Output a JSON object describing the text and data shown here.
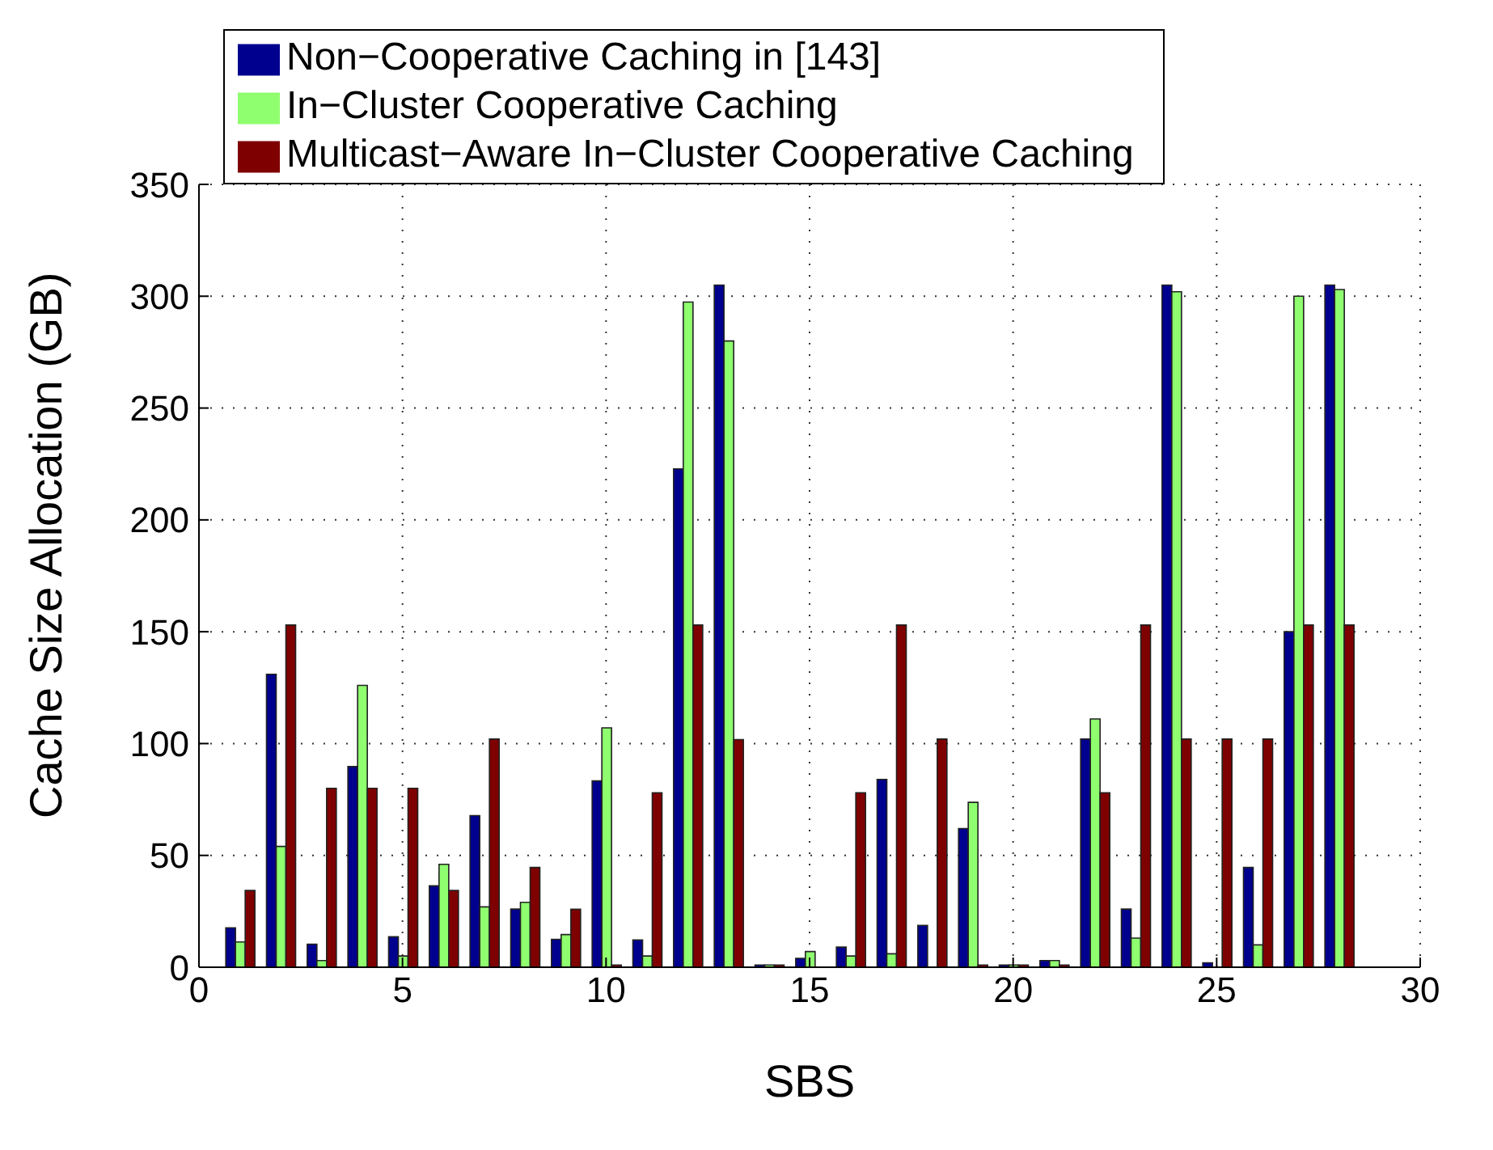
{
  "chart_data": {
    "type": "bar",
    "xlabel": "SBS",
    "ylabel": "Cache Size Allocation (GB)",
    "x": [
      1,
      2,
      3,
      4,
      5,
      6,
      7,
      8,
      9,
      10,
      11,
      12,
      13,
      14,
      15,
      16,
      17,
      18,
      19,
      20,
      21,
      22,
      23,
      24,
      25,
      26,
      27,
      28
    ],
    "series": [
      {
        "name": "Non−Cooperative Caching  in [143]",
        "color": "#00008f",
        "values": [
          17.6,
          131,
          10.3,
          89.7,
          13.6,
          36.4,
          67.8,
          26,
          12.5,
          83.3,
          12.2,
          222.8,
          305,
          1,
          4,
          9,
          84,
          18.7,
          62,
          1,
          3,
          102,
          26,
          305,
          2,
          44.6,
          150,
          305
        ]
      },
      {
        "name": "In−Cluster Cooperative Caching",
        "color": "#8fff6f",
        "values": [
          11.3,
          54,
          3,
          126,
          5,
          46,
          27,
          29,
          14.6,
          107,
          5,
          297.4,
          280,
          1,
          7,
          5,
          6,
          null,
          73.7,
          1,
          3,
          111,
          13,
          302,
          null,
          10,
          300,
          303
        ]
      },
      {
        "name": "Multicast−Aware In−Cluster Cooperative Caching",
        "color": "#7f0000",
        "values": [
          34.3,
          153,
          80,
          80,
          80,
          34.3,
          102,
          44.6,
          25.9,
          1,
          78,
          153,
          101.8,
          1,
          null,
          78,
          153,
          102,
          1,
          1,
          1,
          78,
          153,
          102,
          102,
          102,
          153,
          153
        ]
      }
    ],
    "xlim": [
      0,
      30
    ],
    "xticks": [
      0,
      5,
      10,
      15,
      20,
      25,
      30
    ],
    "ylim": [
      0,
      350
    ],
    "yticks": [
      0,
      50,
      100,
      150,
      200,
      250,
      300,
      350
    ],
    "grid": true,
    "legend": "top"
  }
}
